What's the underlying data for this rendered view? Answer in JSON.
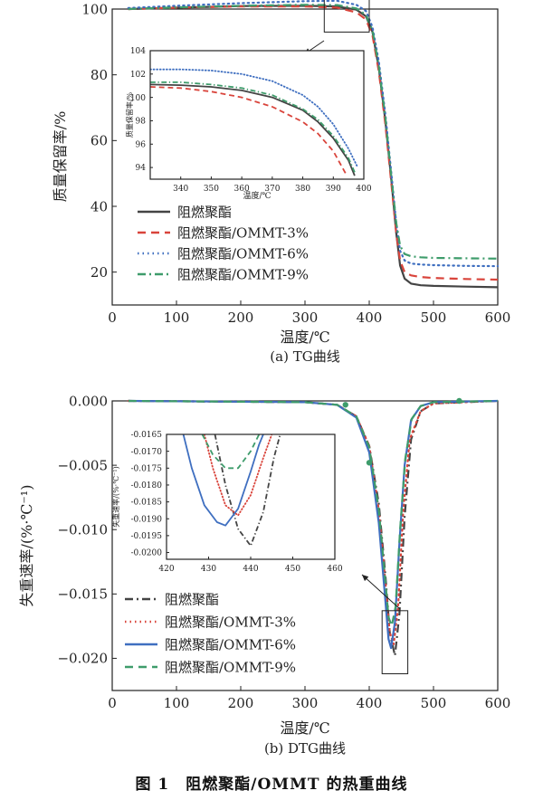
{
  "figure_caption": "图 1　阻燃聚酯/OMMT 的热重曲线",
  "colors": {
    "base": "#444444",
    "omm3": "#d9443b",
    "omm6": "#3f6fc0",
    "omm9": "#3e9c6b"
  },
  "chart_data": [
    {
      "panel": "top",
      "type": "line",
      "title": "(a) TG曲线",
      "xlabel": "温度/℃",
      "ylabel": "质量保留率/%",
      "xlim": [
        0,
        600
      ],
      "ylim": [
        10,
        100
      ],
      "xticks": [
        0,
        100,
        200,
        300,
        400,
        500,
        600
      ],
      "yticks": [
        20,
        40,
        60,
        80,
        100
      ],
      "legend": "bottom-left",
      "series": [
        {
          "name": "阻燃聚酯",
          "style": "solid",
          "x": [
            25,
            100,
            200,
            300,
            350,
            380,
            395,
            405,
            415,
            425,
            435,
            442,
            448,
            455,
            465,
            480,
            500,
            550,
            600
          ],
          "y": [
            100.0,
            100.4,
            100.9,
            101.0,
            100.8,
            99.8,
            97.8,
            93.0,
            82.0,
            66.0,
            47.0,
            32.0,
            22.0,
            18.0,
            16.5,
            16.0,
            15.8,
            15.6,
            15.4
          ]
        },
        {
          "name": "阻燃聚酯/OMMT-3%",
          "style": "dashed",
          "x": [
            25,
            100,
            200,
            300,
            350,
            380,
            395,
            405,
            415,
            425,
            435,
            442,
            448,
            455,
            465,
            480,
            500,
            550,
            600
          ],
          "y": [
            100.0,
            100.4,
            100.8,
            100.8,
            100.4,
            99.0,
            96.8,
            92.0,
            81.0,
            65.0,
            46.0,
            32.0,
            23.5,
            20.0,
            19.0,
            18.5,
            18.2,
            17.9,
            17.7
          ]
        },
        {
          "name": "阻燃聚酯/OMMT-6%",
          "style": "dotted",
          "x": [
            25,
            100,
            200,
            300,
            350,
            380,
            395,
            405,
            415,
            425,
            435,
            442,
            448,
            455,
            465,
            480,
            500,
            550,
            600
          ],
          "y": [
            100.3,
            101.0,
            101.8,
            102.4,
            102.5,
            101.3,
            99.4,
            94.5,
            84.0,
            68.0,
            49.0,
            35.0,
            26.5,
            23.5,
            22.6,
            22.3,
            22.1,
            21.9,
            21.8
          ]
        },
        {
          "name": "阻燃聚酯/OMMT-9%",
          "style": "dashdot",
          "x": [
            25,
            100,
            200,
            300,
            350,
            380,
            395,
            405,
            415,
            425,
            435,
            442,
            448,
            455,
            465,
            480,
            500,
            550,
            600
          ],
          "y": [
            100.0,
            100.5,
            101.0,
            101.3,
            101.2,
            100.2,
            98.2,
            93.5,
            82.5,
            67.0,
            48.0,
            35.0,
            28.0,
            25.5,
            24.8,
            24.5,
            24.3,
            24.2,
            24.1
          ]
        }
      ],
      "zoom_box": {
        "xlim": [
          330,
          400
        ],
        "ylim": [
          93,
          104
        ]
      },
      "inset": {
        "xlabel": "温度/℃",
        "ylabel": "质量保留率/%",
        "xlim": [
          330,
          400
        ],
        "ylim": [
          93,
          104
        ],
        "xticks": [
          340,
          350,
          360,
          370,
          380,
          390,
          400
        ],
        "yticks": [
          94,
          96,
          98,
          100,
          102,
          104
        ],
        "series": [
          {
            "name": "阻燃聚酯",
            "style": "solid",
            "x": [
              330,
              340,
              350,
              360,
              370,
              380,
              385,
              390,
              395,
              397
            ],
            "y": [
              101.1,
              101.05,
              100.9,
              100.6,
              100.0,
              98.9,
              97.9,
              96.5,
              94.6,
              93.3
            ]
          },
          {
            "name": "阻燃聚酯/OMMT-3%",
            "style": "dashed",
            "x": [
              330,
              340,
              350,
              360,
              370,
              380,
              385,
              390,
              394
            ],
            "y": [
              100.9,
              100.8,
              100.5,
              100.0,
              99.2,
              97.9,
              96.9,
              95.4,
              93.5
            ]
          },
          {
            "name": "阻燃聚酯/OMMT-6%",
            "style": "dotted",
            "x": [
              330,
              340,
              350,
              360,
              370,
              380,
              385,
              390,
              395,
              398
            ],
            "y": [
              102.4,
              102.4,
              102.3,
              102.0,
              101.4,
              100.2,
              99.2,
              97.7,
              95.6,
              94.0
            ]
          },
          {
            "name": "阻燃聚酯/OMMT-9%",
            "style": "dashdot",
            "x": [
              330,
              340,
              350,
              360,
              370,
              380,
              385,
              390,
              395,
              397
            ],
            "y": [
              101.3,
              101.3,
              101.1,
              100.8,
              100.2,
              99.0,
              98.1,
              96.7,
              94.8,
              93.6
            ]
          }
        ]
      }
    },
    {
      "panel": "bottom",
      "type": "line",
      "title": "(b) DTG曲线",
      "xlabel": "温度/℃",
      "ylabel": "失重速率/(%·℃⁻¹)",
      "xlim": [
        0,
        600
      ],
      "ylim": [
        -0.0225,
        0.0
      ],
      "xticks": [
        0,
        100,
        200,
        300,
        400,
        500,
        600
      ],
      "yticks": [
        0.0,
        -0.005,
        -0.01,
        -0.015,
        -0.02
      ],
      "ytick_labels": [
        "0.000",
        "−0.005",
        "−0.010",
        "−0.015",
        "−0.020"
      ],
      "legend": "bottom-left",
      "series": [
        {
          "name": "阻燃聚酯",
          "style": "dashdot",
          "x": [
            25,
            300,
            350,
            380,
            400,
            415,
            425,
            432,
            440,
            447,
            455,
            465,
            480,
            500,
            600
          ],
          "y": [
            0.0,
            -0.0001,
            -0.0003,
            -0.0012,
            -0.0035,
            -0.008,
            -0.0135,
            -0.018,
            -0.0198,
            -0.0165,
            -0.009,
            -0.003,
            -0.0008,
            -0.0002,
            0.0
          ]
        },
        {
          "name": "阻燃聚酯/OMMT-3%",
          "style": "dotted",
          "x": [
            25,
            300,
            350,
            380,
            400,
            415,
            425,
            432,
            438,
            445,
            453,
            463,
            480,
            500,
            600
          ],
          "y": [
            0.0,
            -0.0001,
            -0.0003,
            -0.0012,
            -0.0035,
            -0.0085,
            -0.014,
            -0.018,
            -0.0189,
            -0.016,
            -0.0085,
            -0.003,
            -0.0008,
            -0.0002,
            0.0
          ]
        },
        {
          "name": "阻燃聚酯/OMMT-6%",
          "style": "solid",
          "x": [
            25,
            300,
            350,
            380,
            400,
            415,
            425,
            430,
            434,
            440,
            447,
            455,
            465,
            480,
            500,
            600
          ],
          "y": [
            0.0,
            -0.0001,
            -0.0003,
            -0.0013,
            -0.004,
            -0.0095,
            -0.0155,
            -0.0185,
            -0.0192,
            -0.0172,
            -0.011,
            -0.005,
            -0.0015,
            -0.0004,
            -0.0001,
            0.0
          ]
        },
        {
          "name": "阻燃聚酯/OMMT-9%",
          "style": "dashed",
          "x": [
            25,
            300,
            350,
            380,
            400,
            415,
            425,
            430,
            435,
            441,
            448,
            456,
            466,
            480,
            500,
            600
          ],
          "y": [
            0.0,
            -0.0001,
            -0.0003,
            -0.0012,
            -0.0036,
            -0.0085,
            -0.014,
            -0.0168,
            -0.0175,
            -0.016,
            -0.01,
            -0.0045,
            -0.0014,
            -0.0004,
            -0.0001,
            0.0
          ]
        }
      ],
      "markers": {
        "series": "阻燃聚酯/OMMT-9%",
        "x": [
          363,
          400,
          540
        ],
        "y": [
          -0.0003,
          -0.0048,
          0.0
        ]
      },
      "zoom_box": {
        "xlim": [
          420,
          460
        ],
        "ylim": [
          -0.0212,
          -0.0163
        ]
      },
      "inset": {
        "xlabel": "",
        "ylabel": "失重速率/(%·℃⁻¹)",
        "xlim": [
          420,
          460
        ],
        "ylim": [
          -0.0202,
          -0.0165
        ],
        "xticks": [
          420,
          430,
          440,
          450,
          460
        ],
        "yticks": [
          -0.0165,
          -0.017,
          -0.0175,
          -0.018,
          -0.0185,
          -0.019,
          -0.0195,
          -0.02
        ],
        "ytick_labels": [
          "-0.0165",
          "-0.0170",
          "-0.0175",
          "-0.0180",
          "-0.0185",
          "-0.0190",
          "-0.0195",
          "-0.0200"
        ],
        "series": [
          {
            "name": "阻燃聚酯",
            "style": "dashdot",
            "x": [
              431.5,
              434,
              437,
              440,
              443,
              445.5,
              447
            ],
            "y": [
              -0.0165,
              -0.018,
              -0.0193,
              -0.0198,
              -0.0188,
              -0.0172,
              -0.0165
            ]
          },
          {
            "name": "阻燃聚酯/OMMT-3%",
            "style": "dotted",
            "x": [
              429,
              431,
              434,
              437,
              440,
              443,
              445
            ],
            "y": [
              -0.0165,
              -0.0175,
              -0.0186,
              -0.0189,
              -0.0183,
              -0.0172,
              -0.0165
            ]
          },
          {
            "name": "阻燃聚酯/OMMT-6%",
            "style": "solid",
            "x": [
              424,
              426,
              429,
              432,
              434,
              437,
              440,
              442,
              443
            ],
            "y": [
              -0.0165,
              -0.0175,
              -0.0186,
              -0.0191,
              -0.0192,
              -0.0187,
              -0.0176,
              -0.0168,
              -0.0165
            ]
          },
          {
            "name": "阻燃聚酯/OMMT-9%",
            "style": "dashed",
            "x": [
              428.5,
              431,
              434,
              437,
              440,
              442
            ],
            "y": [
              -0.0165,
              -0.0171,
              -0.0175,
              -0.0175,
              -0.017,
              -0.0165
            ]
          }
        ]
      }
    }
  ]
}
